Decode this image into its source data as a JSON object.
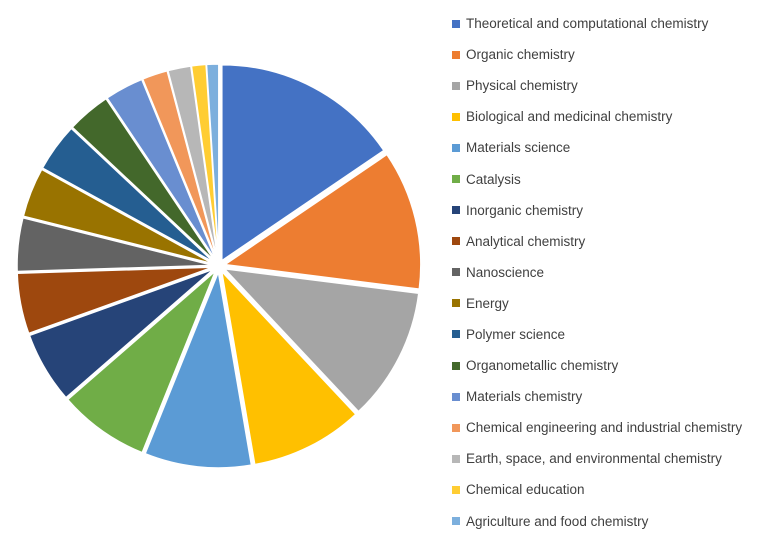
{
  "chart_data": {
    "type": "pie",
    "title": "",
    "legend_position": "right",
    "exploded": true,
    "start_angle_deg": 0,
    "series": [
      {
        "name": "Theoretical and computational chemistry",
        "value": 15.5,
        "color": "#4472C4"
      },
      {
        "name": "Organic chemistry",
        "value": 11.5,
        "color": "#ED7D31"
      },
      {
        "name": "Physical chemistry",
        "value": 11.0,
        "color": "#A5A5A5"
      },
      {
        "name": "Biological and medicinal chemistry",
        "value": 9.3,
        "color": "#FFC000"
      },
      {
        "name": "Materials science",
        "value": 8.8,
        "color": "#5B9BD5"
      },
      {
        "name": "Catalysis",
        "value": 7.5,
        "color": "#70AD47"
      },
      {
        "name": "Inorganic chemistry",
        "value": 5.9,
        "color": "#264478"
      },
      {
        "name": "Analytical chemistry",
        "value": 5.0,
        "color": "#9E480E"
      },
      {
        "name": "Nanoscience",
        "value": 4.4,
        "color": "#636363"
      },
      {
        "name": "Energy",
        "value": 4.1,
        "color": "#997300"
      },
      {
        "name": "Polymer science",
        "value": 4.0,
        "color": "#255E91"
      },
      {
        "name": "Organometallic chemistry",
        "value": 3.6,
        "color": "#43682B"
      },
      {
        "name": "Materials chemistry",
        "value": 3.2,
        "color": "#698ED0"
      },
      {
        "name": "Chemical engineering and industrial chemistry",
        "value": 2.1,
        "color": "#F1975A"
      },
      {
        "name": "Earth, space, and environmental chemistry",
        "value": 1.9,
        "color": "#B7B7B7"
      },
      {
        "name": "Chemical education",
        "value": 1.2,
        "color": "#FFCD33"
      },
      {
        "name": "Agriculture and food chemistry",
        "value": 1.0,
        "color": "#7CAFDD"
      }
    ]
  }
}
